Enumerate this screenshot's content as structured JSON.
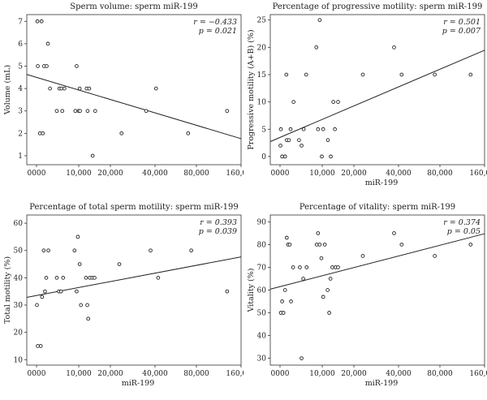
{
  "chart_data": [
    {
      "type": "scatter",
      "title": "Sperm volume: sperm miR-199",
      "xlabel": "",
      "ylabel": "Volume (mL)",
      "xticks": [
        "0000",
        "10,000",
        "20,000",
        "40,000",
        "80,000",
        "160,000"
      ],
      "xtick_values": [
        0,
        10000,
        20000,
        40000,
        80000,
        160000
      ],
      "yticks": [
        "1",
        "2",
        "3",
        "4",
        "5",
        "6",
        "7"
      ],
      "ylim": [
        0.6,
        7.3
      ],
      "stat_lines": [
        "r = −0.433",
        "p = 0.021"
      ],
      "points": [
        [
          200,
          7
        ],
        [
          1200,
          7
        ],
        [
          800,
          2
        ],
        [
          1500,
          2
        ],
        [
          300,
          5
        ],
        [
          1800,
          5
        ],
        [
          2400,
          5
        ],
        [
          2700,
          6
        ],
        [
          3200,
          4
        ],
        [
          4800,
          3
        ],
        [
          5400,
          4
        ],
        [
          5900,
          4
        ],
        [
          6100,
          3
        ],
        [
          6600,
          4
        ],
        [
          9500,
          5
        ],
        [
          9200,
          3
        ],
        [
          10000,
          3
        ],
        [
          10300,
          4
        ],
        [
          10400,
          3
        ],
        [
          12500,
          4
        ],
        [
          12800,
          3
        ],
        [
          13300,
          4
        ],
        [
          14400,
          1
        ],
        [
          15200,
          3
        ],
        [
          25000,
          2
        ],
        [
          36000,
          3
        ],
        [
          41000,
          4
        ],
        [
          72000,
          2
        ],
        [
          135000,
          3
        ]
      ],
      "trend": [
        [
          0,
          4.5
        ],
        [
          195000,
          1.5
        ]
      ]
    },
    {
      "type": "scatter",
      "title": "Percentage of progressive motility: sperm miR-199",
      "xlabel": "miR-199",
      "ylabel": "Progressive motility (A+B) (%)",
      "xticks": [
        "0000",
        "10,000",
        "20,000",
        "40,000",
        "80,000",
        "160,000"
      ],
      "xtick_values": [
        0,
        10000,
        20000,
        40000,
        80000,
        160000
      ],
      "yticks": [
        "0",
        "5",
        "10",
        "15",
        "20",
        "25"
      ],
      "ylim": [
        -1.5,
        26
      ],
      "stat_lines": [
        "r = 0.501",
        "p = 0.007"
      ],
      "points": [
        [
          100,
          2
        ],
        [
          200,
          5
        ],
        [
          500,
          0
        ],
        [
          1200,
          0
        ],
        [
          1500,
          15
        ],
        [
          1600,
          3
        ],
        [
          2100,
          3
        ],
        [
          2500,
          5
        ],
        [
          3200,
          10
        ],
        [
          4500,
          3
        ],
        [
          5100,
          2
        ],
        [
          5600,
          5
        ],
        [
          6200,
          15
        ],
        [
          8600,
          20
        ],
        [
          9000,
          5
        ],
        [
          9400,
          25
        ],
        [
          9900,
          0
        ],
        [
          10300,
          5
        ],
        [
          11800,
          3
        ],
        [
          12700,
          0
        ],
        [
          13500,
          10
        ],
        [
          14000,
          5
        ],
        [
          15000,
          10
        ],
        [
          24000,
          15
        ],
        [
          38000,
          20
        ],
        [
          43000,
          15
        ],
        [
          75000,
          15
        ],
        [
          135000,
          15
        ]
      ],
      "trend": [
        [
          0,
          3.5
        ],
        [
          195000,
          21
        ]
      ]
    },
    {
      "type": "scatter",
      "title": "Percentage of total sperm motility: sperm miR-199",
      "xlabel": "miR-199",
      "ylabel": "Total motility (%)",
      "xticks": [
        "0000",
        "10,000",
        "20,000",
        "40,000",
        "80,000",
        "160,000"
      ],
      "xtick_values": [
        0,
        10000,
        20000,
        40000,
        80000,
        160000
      ],
      "yticks": [
        "10",
        "20",
        "30",
        "40",
        "50",
        "60"
      ],
      "ylim": [
        8,
        63
      ],
      "stat_lines": [
        "r = 0.393",
        "p = 0.039"
      ],
      "points": [
        [
          100,
          30
        ],
        [
          300,
          15
        ],
        [
          1000,
          15
        ],
        [
          1300,
          33
        ],
        [
          1700,
          50
        ],
        [
          2000,
          35
        ],
        [
          2300,
          40
        ],
        [
          2800,
          50
        ],
        [
          4800,
          40
        ],
        [
          5300,
          35
        ],
        [
          5800,
          35
        ],
        [
          6300,
          40
        ],
        [
          9000,
          50
        ],
        [
          9500,
          35
        ],
        [
          9800,
          55
        ],
        [
          10300,
          45
        ],
        [
          10700,
          30
        ],
        [
          12300,
          40
        ],
        [
          12700,
          30
        ],
        [
          13000,
          25
        ],
        [
          13500,
          40
        ],
        [
          14300,
          40
        ],
        [
          15000,
          40
        ],
        [
          24000,
          45
        ],
        [
          38000,
          50
        ],
        [
          43000,
          40
        ],
        [
          75000,
          50
        ],
        [
          135000,
          35
        ]
      ],
      "trend": [
        [
          0,
          33.5
        ],
        [
          195000,
          49
        ]
      ]
    },
    {
      "type": "scatter",
      "title": "Percentage of vitality: sperm miR-199",
      "xlabel": "miR-199",
      "ylabel": "Vitality (%)",
      "xticks": [
        "0000",
        "10,000",
        "20,000",
        "40,000",
        "80,000",
        "160,000"
      ],
      "xtick_values": [
        0,
        10000,
        20000,
        40000,
        80000,
        160000
      ],
      "yticks": [
        "30",
        "40",
        "50",
        "60",
        "70",
        "80",
        "90"
      ],
      "ylim": [
        27,
        93
      ],
      "stat_lines": [
        "r = 0.374",
        "p = 0.05"
      ],
      "points": [
        [
          200,
          50
        ],
        [
          500,
          55
        ],
        [
          800,
          50
        ],
        [
          1200,
          60
        ],
        [
          1600,
          83
        ],
        [
          1900,
          80
        ],
        [
          2300,
          80
        ],
        [
          2600,
          55
        ],
        [
          3100,
          70
        ],
        [
          4700,
          70
        ],
        [
          5100,
          30
        ],
        [
          5500,
          65
        ],
        [
          6300,
          70
        ],
        [
          8700,
          80
        ],
        [
          9000,
          85
        ],
        [
          9400,
          80
        ],
        [
          9800,
          74
        ],
        [
          10300,
          57
        ],
        [
          10800,
          80
        ],
        [
          11700,
          60
        ],
        [
          12200,
          50
        ],
        [
          12600,
          65
        ],
        [
          13200,
          70
        ],
        [
          14200,
          70
        ],
        [
          15000,
          70
        ],
        [
          24000,
          75
        ],
        [
          38000,
          85
        ],
        [
          43000,
          80
        ],
        [
          75000,
          75
        ],
        [
          135000,
          80
        ]
      ],
      "trend": [
        [
          0,
          61.5
        ],
        [
          195000,
          87
        ]
      ]
    }
  ]
}
